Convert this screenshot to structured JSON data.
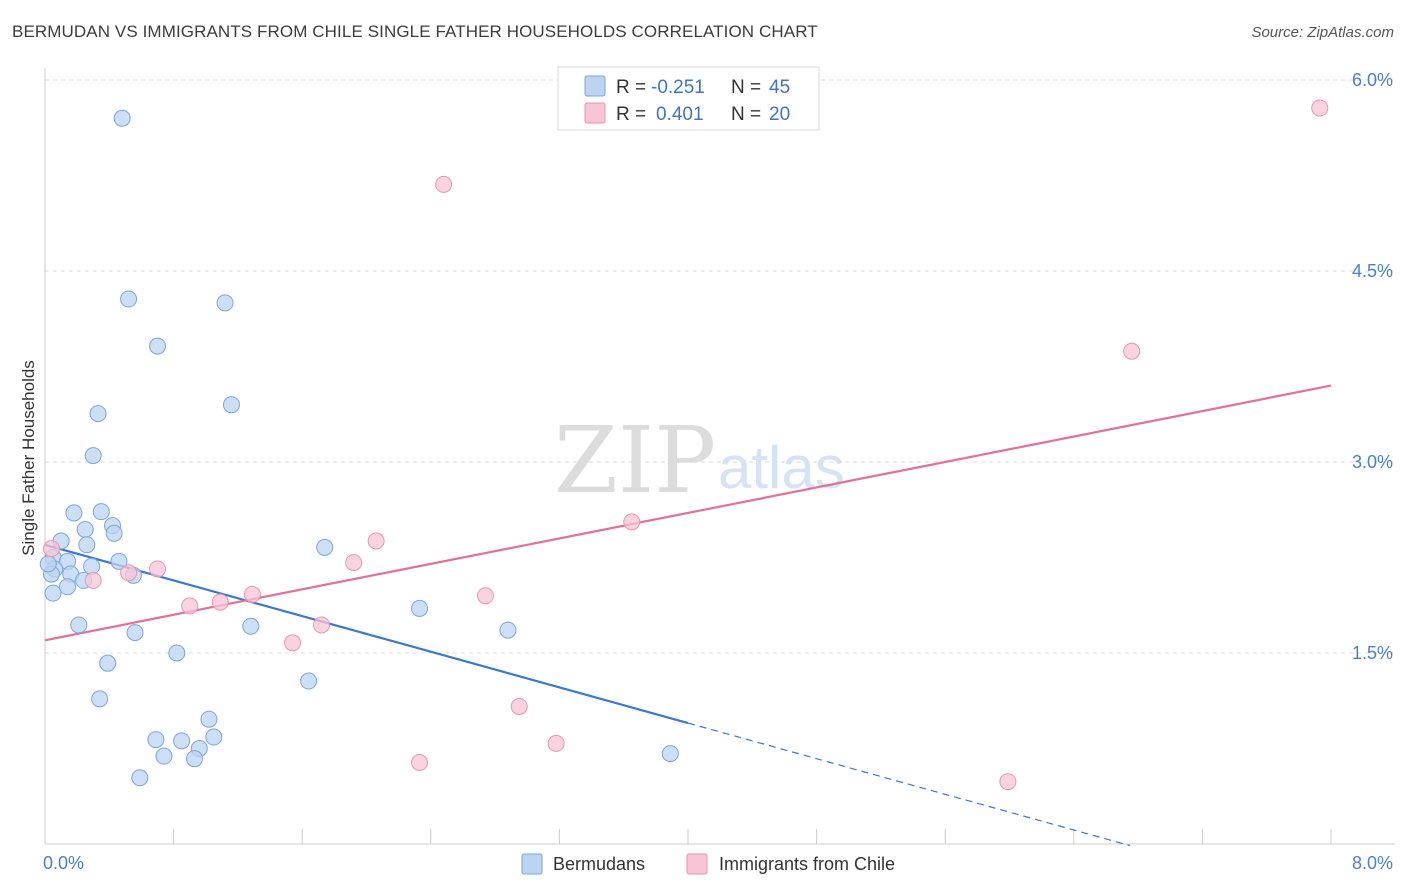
{
  "title": "BERMUDAN VS IMMIGRANTS FROM CHILE SINGLE FATHER HOUSEHOLDS CORRELATION CHART",
  "source": "Source: ZipAtlas.com",
  "watermark": {
    "part1": "ZIP",
    "part2": "atlas"
  },
  "colors": {
    "blue_fill": "#bcd4f2",
    "blue_stroke": "#7aa6e0",
    "blue_line": "#3a78cf",
    "pink_fill": "#f7c5d5",
    "pink_stroke": "#ea94b2",
    "pink_line": "#e0719a",
    "tick_label": "#4a7fcf",
    "grid": "#dddddd"
  },
  "legend": {
    "r_label": "R =",
    "n_label": "N =",
    "rows": [
      {
        "r": "-0.251",
        "n": "45",
        "series": "blue"
      },
      {
        "r": "0.401",
        "n": "20",
        "series": "pink"
      }
    ]
  },
  "chart_data": {
    "type": "scatter",
    "title": "BERMUDAN VS IMMIGRANTS FROM CHILE SINGLE FATHER HOUSEHOLDS CORRELATION CHART",
    "xlabel": "",
    "ylabel": "Single Father Households",
    "xlim": [
      0,
      8.0
    ],
    "ylim": [
      0,
      6.0
    ],
    "x_tick_labels": [
      "0.0%",
      "8.0%"
    ],
    "y_ticks": [
      1.5,
      3.0,
      4.5,
      6.0
    ],
    "y_tick_labels": [
      "1.5%",
      "3.0%",
      "4.5%",
      "6.0%"
    ],
    "grid": true,
    "series": [
      {
        "name": "Bermudans",
        "color": "blue",
        "r": -0.251,
        "n": 45,
        "points": [
          [
            0.48,
            5.7
          ],
          [
            0.52,
            4.28
          ],
          [
            1.12,
            4.25
          ],
          [
            0.7,
            3.91
          ],
          [
            1.16,
            3.45
          ],
          [
            0.33,
            3.38
          ],
          [
            0.3,
            3.05
          ],
          [
            0.18,
            2.6
          ],
          [
            0.35,
            2.61
          ],
          [
            0.42,
            2.5
          ],
          [
            0.25,
            2.47
          ],
          [
            0.43,
            2.44
          ],
          [
            0.1,
            2.38
          ],
          [
            0.26,
            2.35
          ],
          [
            1.74,
            2.33
          ],
          [
            0.05,
            2.25
          ],
          [
            0.14,
            2.22
          ],
          [
            0.46,
            2.22
          ],
          [
            0.29,
            2.18
          ],
          [
            0.06,
            2.16
          ],
          [
            0.04,
            2.12
          ],
          [
            0.16,
            2.12
          ],
          [
            0.55,
            2.11
          ],
          [
            0.24,
            2.07
          ],
          [
            0.14,
            2.02
          ],
          [
            0.05,
            1.97
          ],
          [
            2.33,
            1.85
          ],
          [
            0.21,
            1.72
          ],
          [
            1.28,
            1.71
          ],
          [
            2.88,
            1.68
          ],
          [
            0.56,
            1.66
          ],
          [
            0.82,
            1.5
          ],
          [
            0.39,
            1.42
          ],
          [
            1.64,
            1.28
          ],
          [
            0.34,
            1.14
          ],
          [
            1.02,
            0.98
          ],
          [
            0.69,
            0.82
          ],
          [
            0.85,
            0.81
          ],
          [
            1.05,
            0.84
          ],
          [
            0.96,
            0.75
          ],
          [
            0.74,
            0.69
          ],
          [
            0.93,
            0.67
          ],
          [
            3.89,
            0.71
          ],
          [
            0.59,
            0.52
          ],
          [
            0.02,
            2.2
          ]
        ]
      },
      {
        "name": "Immigrants from Chile",
        "color": "pink",
        "r": 0.401,
        "n": 20,
        "points": [
          [
            7.93,
            5.78
          ],
          [
            2.48,
            5.18
          ],
          [
            6.76,
            3.87
          ],
          [
            3.65,
            2.53
          ],
          [
            2.06,
            2.38
          ],
          [
            0.04,
            2.32
          ],
          [
            1.92,
            2.21
          ],
          [
            0.7,
            2.16
          ],
          [
            0.52,
            2.13
          ],
          [
            0.3,
            2.07
          ],
          [
            1.29,
            1.96
          ],
          [
            2.74,
            1.95
          ],
          [
            1.09,
            1.9
          ],
          [
            0.9,
            1.87
          ],
          [
            1.72,
            1.72
          ],
          [
            1.54,
            1.58
          ],
          [
            2.95,
            1.08
          ],
          [
            3.18,
            0.79
          ],
          [
            2.33,
            0.64
          ],
          [
            5.99,
            0.49
          ]
        ]
      }
    ],
    "trend_lines": [
      {
        "series": "Bermudans",
        "x": [
          0.0,
          4.0
        ],
        "y": [
          2.35,
          0.95
        ],
        "dashed_extension_to_x": 6.75
      },
      {
        "series": "Immigrants from Chile",
        "x": [
          0.0,
          8.0
        ],
        "y": [
          1.6,
          3.6
        ]
      }
    ]
  },
  "bottom_legend": [
    {
      "label": "Bermudans",
      "series": "blue"
    },
    {
      "label": "Immigrants from Chile",
      "series": "pink"
    }
  ]
}
